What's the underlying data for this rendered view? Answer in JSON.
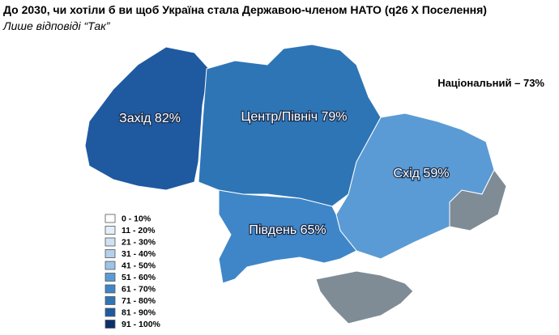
{
  "title": "До 2030, чи хотіли б ви щоб Україна стала Державою-членом НАТО (q26 X Поселення)",
  "subtitle": "Лише відповіді “Так”",
  "national": "Національний – 73%",
  "regions": [
    {
      "label": "Захід 82%",
      "color": "#1f5aa0"
    },
    {
      "label": "Центр/Північ 79%",
      "color": "#2e75b6"
    },
    {
      "label": "Схід 59%",
      "color": "#5b9bd5"
    },
    {
      "label": "Південь 65%",
      "color": "#3f86c8"
    }
  ],
  "legend": [
    {
      "label": "0 - 10%",
      "color": "#ffffff"
    },
    {
      "label": "11 - 20%",
      "color": "#e3eef9"
    },
    {
      "label": "21 - 30%",
      "color": "#cfe1f3"
    },
    {
      "label": "31 - 40%",
      "color": "#b4d0ec"
    },
    {
      "label": "41 - 50%",
      "color": "#9dc3e6"
    },
    {
      "label": "51 - 60%",
      "color": "#5b9bd5"
    },
    {
      "label": "61 - 70%",
      "color": "#3f86c8"
    },
    {
      "label": "71 - 80%",
      "color": "#2e75b6"
    },
    {
      "label": "81 - 90%",
      "color": "#1f5aa0"
    },
    {
      "label": "91 - 100%",
      "color": "#0d2f6b"
    }
  ]
}
